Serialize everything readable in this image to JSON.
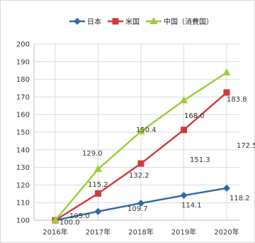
{
  "chart_data": {
    "type": "line",
    "categories": [
      "2016年",
      "2017年",
      "2018年",
      "2019年",
      "2020年"
    ],
    "ylim": [
      100,
      200
    ],
    "yticks": [
      100,
      110,
      120,
      130,
      140,
      150,
      160,
      170,
      180,
      190,
      200
    ],
    "grid": true,
    "legend_position": "top",
    "series": [
      {
        "name": "日本",
        "color": "#2e6aa8",
        "marker": "diamond",
        "values": [
          100.0,
          105.0,
          109.7,
          114.1,
          118.2
        ],
        "labels": [
          "100.0",
          "105.0",
          "109.7",
          "114.1",
          "118.2"
        ]
      },
      {
        "name": "米国",
        "color": "#d03a3a",
        "marker": "square",
        "values": [
          100.0,
          115.2,
          132.2,
          151.3,
          172.5
        ],
        "labels": [
          "",
          "115.2",
          "132.2",
          "151.3",
          "172.5"
        ]
      },
      {
        "name": "中国（消費国）",
        "color": "#9ccc3a",
        "marker": "triangle",
        "values": [
          100.0,
          129.0,
          150.4,
          168.0,
          183.8
        ],
        "labels": [
          "",
          "129.0",
          "150.4",
          "168.0",
          "183.8"
        ]
      }
    ]
  }
}
